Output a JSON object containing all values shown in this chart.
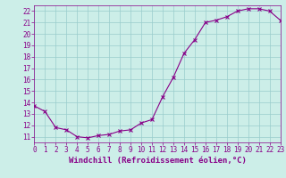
{
  "hours": [
    0,
    1,
    2,
    3,
    4,
    5,
    6,
    7,
    8,
    9,
    10,
    11,
    12,
    13,
    14,
    15,
    16,
    17,
    18,
    19,
    20,
    21,
    22,
    23
  ],
  "temps": [
    13.7,
    13.2,
    11.8,
    11.6,
    11.0,
    10.9,
    11.1,
    11.2,
    11.5,
    11.6,
    12.2,
    12.5,
    14.5,
    16.2,
    18.3,
    19.5,
    21.0,
    21.2,
    21.5,
    22.0,
    22.2,
    22.2,
    22.0,
    21.2
  ],
  "xlim": [
    0,
    23
  ],
  "ylim": [
    10.5,
    22.5
  ],
  "yticks": [
    11,
    12,
    13,
    14,
    15,
    16,
    17,
    18,
    19,
    20,
    21,
    22
  ],
  "xticks": [
    0,
    1,
    2,
    3,
    4,
    5,
    6,
    7,
    8,
    9,
    10,
    11,
    12,
    13,
    14,
    15,
    16,
    17,
    18,
    19,
    20,
    21,
    22,
    23
  ],
  "line_color": "#880088",
  "marker": "x",
  "markersize": 2.5,
  "linewidth": 0.8,
  "bg_color": "#cceee8",
  "grid_color": "#99cccc",
  "xlabel": "Windchill (Refroidissement éolien,°C)",
  "xlabel_fontsize": 6.5,
  "tick_fontsize": 5.5
}
